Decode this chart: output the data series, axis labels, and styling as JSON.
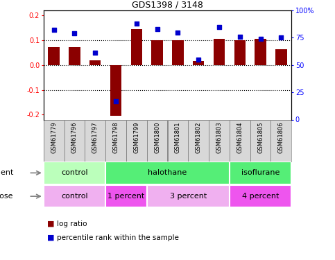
{
  "title": "GDS1398 / 3148",
  "samples": [
    "GSM61779",
    "GSM61796",
    "GSM61797",
    "GSM61798",
    "GSM61799",
    "GSM61800",
    "GSM61801",
    "GSM61802",
    "GSM61803",
    "GSM61804",
    "GSM61805",
    "GSM61806"
  ],
  "log_ratio": [
    0.072,
    0.072,
    0.018,
    -0.205,
    0.145,
    0.1,
    0.1,
    0.015,
    0.105,
    0.1,
    0.105,
    0.063
  ],
  "percentile_rank": [
    82,
    79,
    61,
    17,
    88,
    83,
    80,
    55,
    85,
    76,
    74,
    75
  ],
  "bar_color": "#8B0000",
  "dot_color": "#0000CD",
  "ylim": [
    -0.22,
    0.22
  ],
  "yticks_left": [
    -0.2,
    -0.1,
    0.0,
    0.1,
    0.2
  ],
  "yticks_right": [
    0,
    25,
    50,
    75,
    100
  ],
  "hlines": [
    -0.1,
    0.0,
    0.1
  ],
  "agent_groups": [
    {
      "label": "control",
      "start": 0,
      "end": 3,
      "color": "#BBFFBB"
    },
    {
      "label": "halothane",
      "start": 3,
      "end": 9,
      "color": "#44DD66"
    },
    {
      "label": "isoflurane",
      "start": 9,
      "end": 12,
      "color": "#44DD66"
    }
  ],
  "dose_groups": [
    {
      "label": "control",
      "start": 0,
      "end": 3,
      "color": "#F0B0F0"
    },
    {
      "label": "1 percent",
      "start": 3,
      "end": 5,
      "color": "#EE55EE"
    },
    {
      "label": "3 percent",
      "start": 5,
      "end": 9,
      "color": "#F0B0F0"
    },
    {
      "label": "4 percent",
      "start": 9,
      "end": 12,
      "color": "#EE55EE"
    }
  ],
  "legend_bar_label": "log ratio",
  "legend_dot_label": "percentile rank within the sample",
  "agent_label": "agent",
  "dose_label": "dose",
  "bar_width": 0.55,
  "sample_box_color": "#D8D8D8",
  "sample_box_edge": "#888888"
}
